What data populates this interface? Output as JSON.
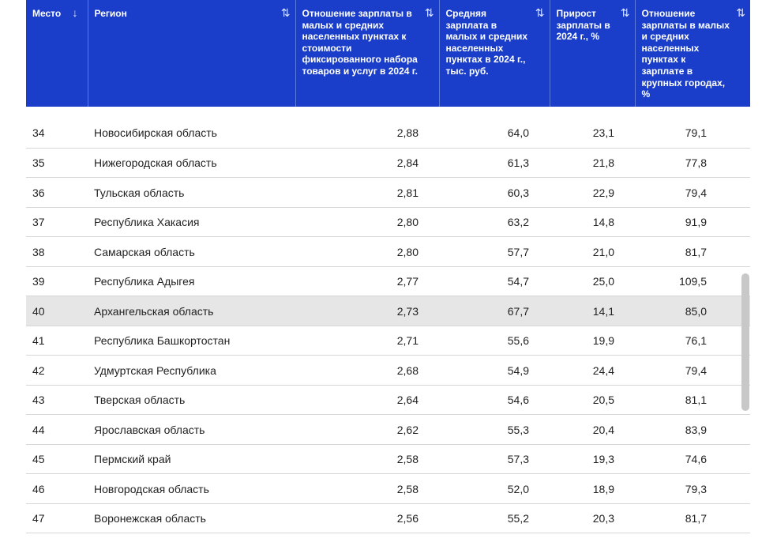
{
  "table": {
    "columns": [
      {
        "label": "Место",
        "sort_icon": "↓"
      },
      {
        "label": "Регион",
        "sort_icon": "⇅"
      },
      {
        "label": "Отношение зарплаты в малых и средних населенных пунктах к стоимости фиксированного набора товаров и услуг в 2024 г.",
        "sort_icon": "⇅"
      },
      {
        "label": "Средняя зарплата в малых и средних населенных пунктах в 2024 г., тыс. руб.",
        "sort_icon": "⇅"
      },
      {
        "label": "Прирост зарплаты в 2024 г., %",
        "sort_icon": "⇅"
      },
      {
        "label": "Отношение зарплаты в малых и средних населенных пунктах к зарплате в крупных городах, %",
        "sort_icon": "⇅"
      }
    ],
    "rows": [
      {
        "place": "34",
        "region": "Новосибирская область",
        "ratio": "2,88",
        "salary": "64,0",
        "growth": "23,1",
        "share": "79,1"
      },
      {
        "place": "35",
        "region": "Нижегородская область",
        "ratio": "2,84",
        "salary": "61,3",
        "growth": "21,8",
        "share": "77,8"
      },
      {
        "place": "36",
        "region": "Тульская область",
        "ratio": "2,81",
        "salary": "60,3",
        "growth": "22,9",
        "share": "79,4"
      },
      {
        "place": "37",
        "region": "Республика Хакасия",
        "ratio": "2,80",
        "salary": "63,2",
        "growth": "14,8",
        "share": "91,9"
      },
      {
        "place": "38",
        "region": "Самарская область",
        "ratio": "2,80",
        "salary": "57,7",
        "growth": "21,0",
        "share": "81,7"
      },
      {
        "place": "39",
        "region": "Республика Адыгея",
        "ratio": "2,77",
        "salary": "54,7",
        "growth": "25,0",
        "share": "109,5"
      },
      {
        "place": "40",
        "region": "Архангельская область",
        "ratio": "2,73",
        "salary": "67,7",
        "growth": "14,1",
        "share": "85,0"
      },
      {
        "place": "41",
        "region": "Республика Башкортостан",
        "ratio": "2,71",
        "salary": "55,6",
        "growth": "19,9",
        "share": "76,1"
      },
      {
        "place": "42",
        "region": "Удмуртская Республика",
        "ratio": "2,68",
        "salary": "54,9",
        "growth": "24,4",
        "share": "79,4"
      },
      {
        "place": "43",
        "region": "Тверская область",
        "ratio": "2,64",
        "salary": "54,6",
        "growth": "20,5",
        "share": "81,1"
      },
      {
        "place": "44",
        "region": "Ярославская область",
        "ratio": "2,62",
        "salary": "55,3",
        "growth": "20,4",
        "share": "83,9"
      },
      {
        "place": "45",
        "region": "Пермский край",
        "ratio": "2,58",
        "salary": "57,3",
        "growth": "19,3",
        "share": "74,6"
      },
      {
        "place": "46",
        "region": "Новгородская область",
        "ratio": "2,58",
        "salary": "52,0",
        "growth": "18,9",
        "share": "79,3"
      },
      {
        "place": "47",
        "region": "Воронежская область",
        "ratio": "2,56",
        "salary": "55,2",
        "growth": "20,3",
        "share": "81,7"
      }
    ],
    "selected_place": "40"
  },
  "colors": {
    "header_bg": "#1a3ec9",
    "header_text": "#ffffff",
    "selected_row": "#e6e6e6"
  }
}
